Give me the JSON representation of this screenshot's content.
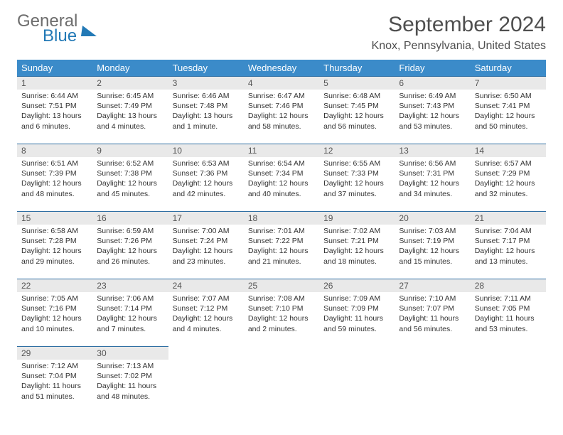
{
  "brand": {
    "part1": "General",
    "part2": "Blue"
  },
  "title": "September 2024",
  "location": "Knox, Pennsylvania, United States",
  "colors": {
    "header_bg": "#3b8bc9",
    "row_border": "#2f6fa3",
    "daynum_bg": "#e9e9e9",
    "logo_blue": "#2279b6",
    "logo_gray": "#6d6d6d"
  },
  "weekdays": [
    "Sunday",
    "Monday",
    "Tuesday",
    "Wednesday",
    "Thursday",
    "Friday",
    "Saturday"
  ],
  "grid": [
    [
      {
        "n": 1,
        "sr": "6:44 AM",
        "ss": "7:51 PM",
        "dl": "13 hours and 6 minutes."
      },
      {
        "n": 2,
        "sr": "6:45 AM",
        "ss": "7:49 PM",
        "dl": "13 hours and 4 minutes."
      },
      {
        "n": 3,
        "sr": "6:46 AM",
        "ss": "7:48 PM",
        "dl": "13 hours and 1 minute."
      },
      {
        "n": 4,
        "sr": "6:47 AM",
        "ss": "7:46 PM",
        "dl": "12 hours and 58 minutes."
      },
      {
        "n": 5,
        "sr": "6:48 AM",
        "ss": "7:45 PM",
        "dl": "12 hours and 56 minutes."
      },
      {
        "n": 6,
        "sr": "6:49 AM",
        "ss": "7:43 PM",
        "dl": "12 hours and 53 minutes."
      },
      {
        "n": 7,
        "sr": "6:50 AM",
        "ss": "7:41 PM",
        "dl": "12 hours and 50 minutes."
      }
    ],
    [
      {
        "n": 8,
        "sr": "6:51 AM",
        "ss": "7:39 PM",
        "dl": "12 hours and 48 minutes."
      },
      {
        "n": 9,
        "sr": "6:52 AM",
        "ss": "7:38 PM",
        "dl": "12 hours and 45 minutes."
      },
      {
        "n": 10,
        "sr": "6:53 AM",
        "ss": "7:36 PM",
        "dl": "12 hours and 42 minutes."
      },
      {
        "n": 11,
        "sr": "6:54 AM",
        "ss": "7:34 PM",
        "dl": "12 hours and 40 minutes."
      },
      {
        "n": 12,
        "sr": "6:55 AM",
        "ss": "7:33 PM",
        "dl": "12 hours and 37 minutes."
      },
      {
        "n": 13,
        "sr": "6:56 AM",
        "ss": "7:31 PM",
        "dl": "12 hours and 34 minutes."
      },
      {
        "n": 14,
        "sr": "6:57 AM",
        "ss": "7:29 PM",
        "dl": "12 hours and 32 minutes."
      }
    ],
    [
      {
        "n": 15,
        "sr": "6:58 AM",
        "ss": "7:28 PM",
        "dl": "12 hours and 29 minutes."
      },
      {
        "n": 16,
        "sr": "6:59 AM",
        "ss": "7:26 PM",
        "dl": "12 hours and 26 minutes."
      },
      {
        "n": 17,
        "sr": "7:00 AM",
        "ss": "7:24 PM",
        "dl": "12 hours and 23 minutes."
      },
      {
        "n": 18,
        "sr": "7:01 AM",
        "ss": "7:22 PM",
        "dl": "12 hours and 21 minutes."
      },
      {
        "n": 19,
        "sr": "7:02 AM",
        "ss": "7:21 PM",
        "dl": "12 hours and 18 minutes."
      },
      {
        "n": 20,
        "sr": "7:03 AM",
        "ss": "7:19 PM",
        "dl": "12 hours and 15 minutes."
      },
      {
        "n": 21,
        "sr": "7:04 AM",
        "ss": "7:17 PM",
        "dl": "12 hours and 13 minutes."
      }
    ],
    [
      {
        "n": 22,
        "sr": "7:05 AM",
        "ss": "7:16 PM",
        "dl": "12 hours and 10 minutes."
      },
      {
        "n": 23,
        "sr": "7:06 AM",
        "ss": "7:14 PM",
        "dl": "12 hours and 7 minutes."
      },
      {
        "n": 24,
        "sr": "7:07 AM",
        "ss": "7:12 PM",
        "dl": "12 hours and 4 minutes."
      },
      {
        "n": 25,
        "sr": "7:08 AM",
        "ss": "7:10 PM",
        "dl": "12 hours and 2 minutes."
      },
      {
        "n": 26,
        "sr": "7:09 AM",
        "ss": "7:09 PM",
        "dl": "11 hours and 59 minutes."
      },
      {
        "n": 27,
        "sr": "7:10 AM",
        "ss": "7:07 PM",
        "dl": "11 hours and 56 minutes."
      },
      {
        "n": 28,
        "sr": "7:11 AM",
        "ss": "7:05 PM",
        "dl": "11 hours and 53 minutes."
      }
    ],
    [
      {
        "n": 29,
        "sr": "7:12 AM",
        "ss": "7:04 PM",
        "dl": "11 hours and 51 minutes."
      },
      {
        "n": 30,
        "sr": "7:13 AM",
        "ss": "7:02 PM",
        "dl": "11 hours and 48 minutes."
      },
      null,
      null,
      null,
      null,
      null
    ]
  ],
  "labels": {
    "sunrise": "Sunrise:",
    "sunset": "Sunset:",
    "daylight": "Daylight:"
  }
}
